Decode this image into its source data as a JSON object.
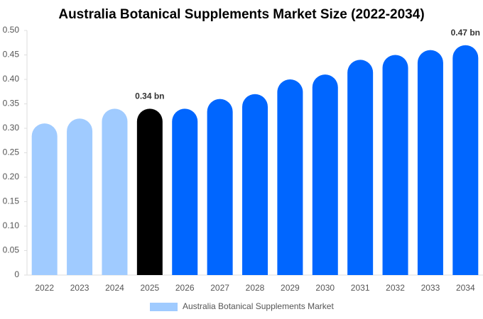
{
  "chart_data": {
    "type": "bar",
    "title": "Australia Botanical Supplements Market Size (2022-2034)",
    "categories": [
      "2022",
      "2023",
      "2024",
      "2025",
      "2026",
      "2027",
      "2028",
      "2029",
      "2030",
      "2031",
      "2032",
      "2033",
      "2034"
    ],
    "series": [
      {
        "name": "Australia Botanical Supplements Market",
        "color": "#a0cbff",
        "values": [
          0.31,
          0.32,
          0.34,
          0.34,
          0.34,
          0.36,
          0.37,
          0.4,
          0.41,
          0.44,
          0.45,
          0.46,
          0.47
        ],
        "value_labels": [
          null,
          null,
          null,
          "0.34 bn",
          null,
          null,
          null,
          null,
          null,
          null,
          null,
          null,
          "0.47 bn"
        ],
        "colors": [
          "#a0cbff",
          "#a0cbff",
          "#a0cbff",
          "#000000",
          "#0066ff",
          "#0066ff",
          "#0066ff",
          "#0066ff",
          "#0066ff",
          "#0066ff",
          "#0066ff",
          "#0066ff",
          "#0066ff"
        ]
      }
    ],
    "ylim": [
      0,
      0.5
    ],
    "yticks": [
      0,
      0.05,
      {
        "value": 0.1,
        "label": "0.10"
      },
      0.15,
      {
        "value": 0.2,
        "label": "0.20"
      },
      0.25,
      {
        "value": 0.3,
        "label": "0.30"
      },
      0.35,
      {
        "value": 0.4,
        "label": "0.40"
      },
      0.45,
      {
        "value": 0.5,
        "label": "0.50"
      }
    ],
    "grid": false
  }
}
